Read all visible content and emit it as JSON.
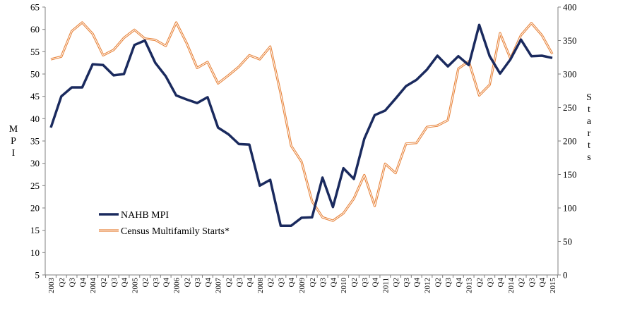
{
  "chart_data": {
    "type": "line",
    "title": "",
    "ylabel_left": "MPI",
    "ylabel_right": "Starts",
    "ylim_left": [
      5,
      65
    ],
    "yticks_left": [
      5,
      10,
      15,
      20,
      25,
      30,
      35,
      40,
      45,
      50,
      55,
      60,
      65
    ],
    "ylim_right": [
      0,
      400
    ],
    "yticks_right": [
      0,
      50,
      100,
      150,
      200,
      250,
      300,
      350,
      400
    ],
    "grid": false,
    "legend_position": "lower-left",
    "x_labels": [
      "2003",
      "Q2",
      "Q3",
      "Q4",
      "2004",
      "Q2",
      "Q3",
      "Q4",
      "2005",
      "Q2",
      "Q3",
      "Q4",
      "2006",
      "Q2",
      "Q3",
      "Q4",
      "2007",
      "Q2",
      "Q3",
      "Q4",
      "2008",
      "Q2",
      "Q3",
      "Q4",
      "2009",
      "Q2",
      "Q3",
      "Q4",
      "2010",
      "Q2",
      "Q3",
      "Q4",
      "2011",
      "Q2",
      "Q3",
      "Q4",
      "2012",
      "Q2",
      "Q3",
      "Q4",
      "2013",
      "Q2",
      "Q3",
      "Q4",
      "2014",
      "Q2",
      "Q3",
      "Q4",
      "2015"
    ],
    "series": [
      {
        "name": "NAHB MPI",
        "axis": "left",
        "color": "#1a2a5e",
        "values": [
          38,
          45,
          47,
          47,
          52.2,
          52,
          49.7,
          50,
          56.5,
          57.5,
          52.5,
          49.5,
          45.2,
          44.3,
          43.5,
          44.8,
          38,
          36.5,
          34.3,
          34.2,
          25,
          26.3,
          16,
          16,
          17.8,
          17.9,
          26.8,
          20.2,
          28.9,
          26.5,
          35.5,
          40.8,
          41.8,
          44.5,
          47.3,
          48.7,
          51,
          54.1,
          51.7,
          54,
          52,
          61,
          54,
          50.1,
          53.3,
          57.7,
          54,
          54.1,
          53.6
        ]
      },
      {
        "name": "Census Multifamily Starts*",
        "axis": "right",
        "color": "#e8853d",
        "values": [
          322,
          326,
          364,
          377,
          360,
          328,
          336,
          354,
          366,
          353,
          351,
          342,
          377,
          346,
          309,
          318,
          286,
          298,
          311,
          328,
          322,
          341,
          271,
          193,
          169,
          110,
          86,
          81,
          92,
          114,
          149,
          103,
          166,
          152,
          196,
          197,
          221,
          223,
          231,
          308,
          319,
          268,
          284,
          361,
          323,
          358,
          376,
          358,
          330
        ]
      }
    ]
  }
}
